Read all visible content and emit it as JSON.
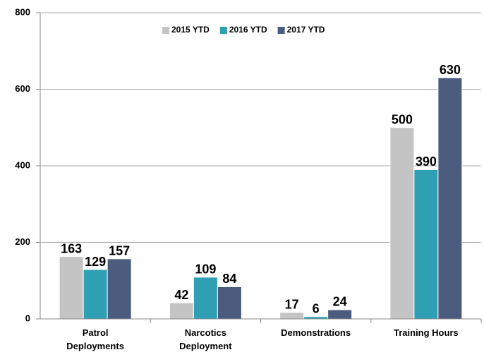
{
  "chart_data": {
    "type": "bar",
    "categories": [
      "Patrol Deployments",
      "Narcotics Deployment",
      "Demonstrations",
      "Training Hours"
    ],
    "series": [
      {
        "name": "2015 YTD",
        "color": "#c4c4c4",
        "values": [
          163,
          42,
          17,
          500
        ]
      },
      {
        "name": "2016 YTD",
        "color": "#2f9fb3",
        "values": [
          129,
          109,
          6,
          390
        ]
      },
      {
        "name": "2017 YTD",
        "color": "#4b5c7f",
        "values": [
          157,
          84,
          24,
          630
        ]
      }
    ],
    "ylim": [
      0,
      800
    ],
    "yticks": [
      0,
      200,
      400,
      600,
      800
    ],
    "grid": true,
    "legend": "top"
  }
}
